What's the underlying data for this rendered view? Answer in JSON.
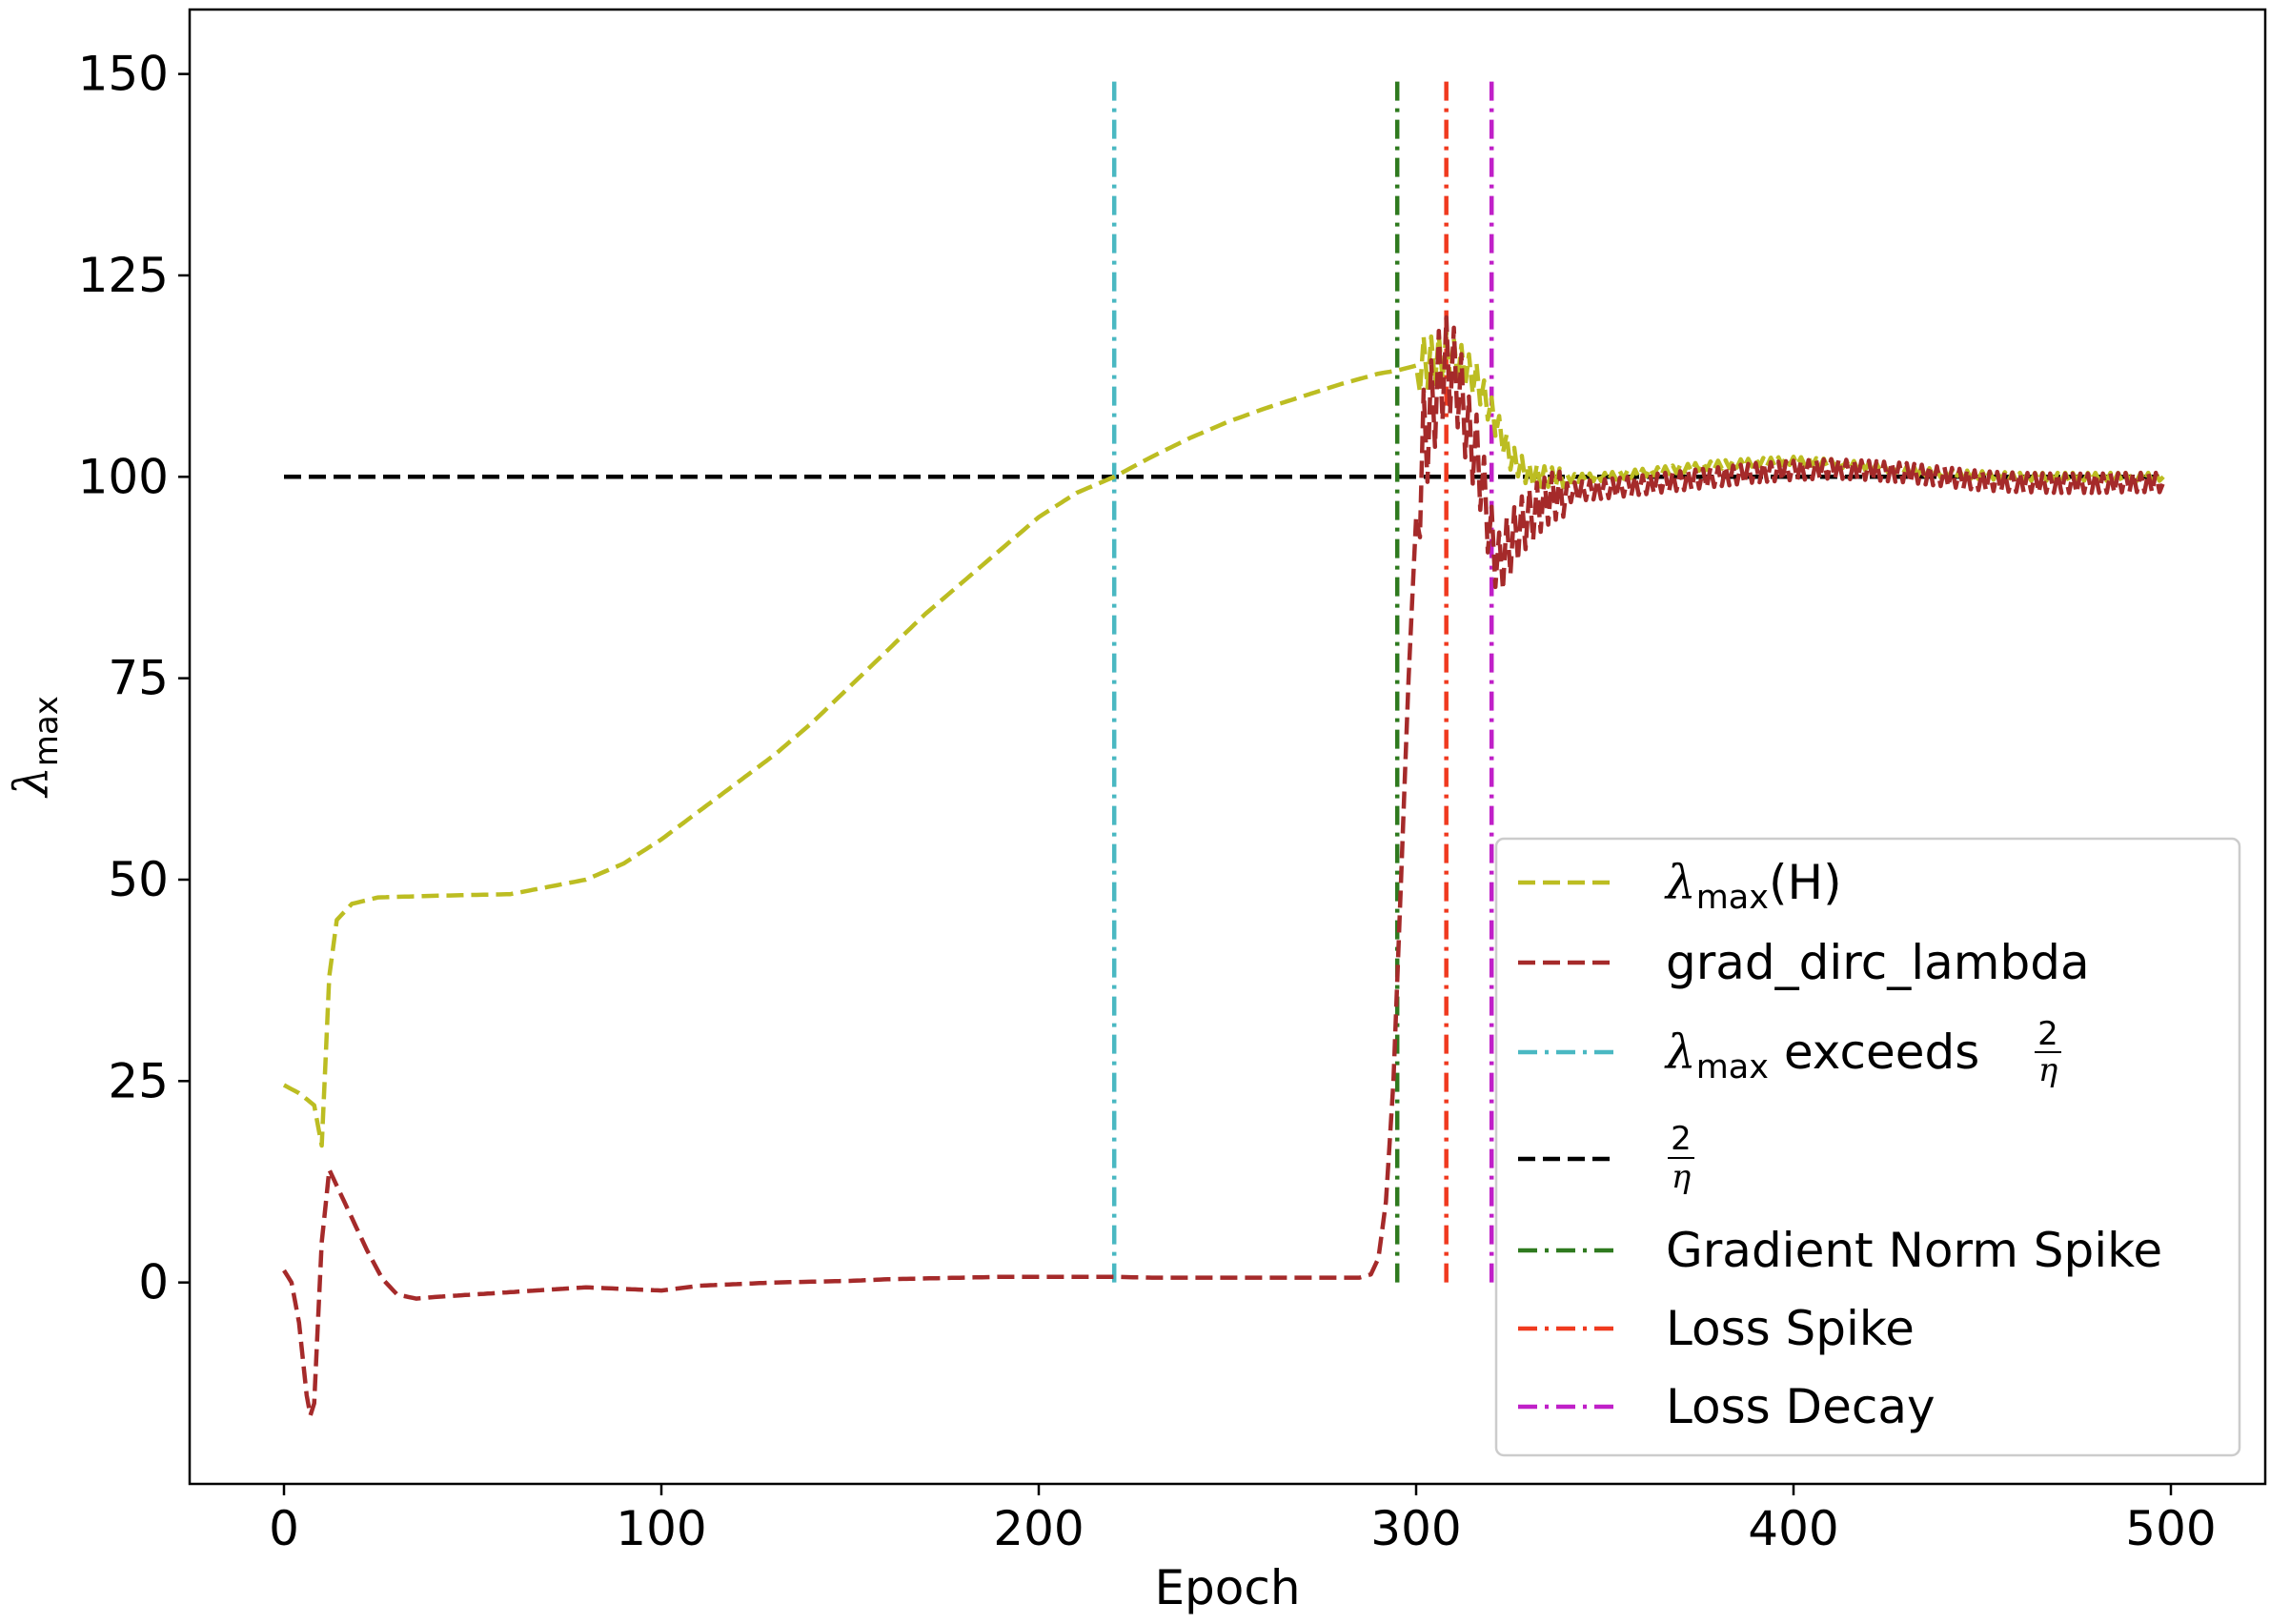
{
  "chart_data": {
    "type": "line",
    "xlabel": "Epoch",
    "ylabel_main": "λ",
    "ylabel_sub": "max",
    "xlim": [
      -25,
      525
    ],
    "ylim": [
      -25,
      158
    ],
    "xticks": [
      0,
      100,
      200,
      300,
      400,
      500
    ],
    "yticks": [
      0,
      25,
      50,
      75,
      100,
      125,
      150
    ],
    "grid": false,
    "legend_position": "lower-right",
    "colors": {
      "lambda_max_H": "#bcbd22",
      "grad_dirc_lambda": "#a52a2a",
      "exceeds": "#4ab8c2",
      "two_over_eta": "#000000",
      "grad_norm_spike": "#2f7a1f",
      "loss_spike": "#f03a1f",
      "loss_decay": "#c020c8"
    },
    "series": [
      {
        "name": "λmax(H)",
        "style": "dashed",
        "x": [
          0,
          4,
          8,
          10,
          12,
          14,
          18,
          25,
          40,
          60,
          80,
          90,
          100,
          110,
          120,
          130,
          140,
          150,
          160,
          170,
          180,
          190,
          200,
          210,
          220,
          230,
          240,
          250,
          260,
          270,
          280,
          290,
          295,
          300,
          305,
          308,
          312,
          316,
          320,
          325,
          330,
          340,
          350,
          360,
          370,
          380,
          390,
          400,
          410,
          420,
          430,
          440,
          450,
          460,
          470,
          480,
          490,
          498
        ],
        "y": [
          24.5,
          23.5,
          22.0,
          17.0,
          38.0,
          45.0,
          47.0,
          47.8,
          48.0,
          48.2,
          50.0,
          52.0,
          55.0,
          58.5,
          62.0,
          65.5,
          69.5,
          74.0,
          78.5,
          83.0,
          87.0,
          91.0,
          95.0,
          98.0,
          100.0,
          102.5,
          104.8,
          106.8,
          108.5,
          110.0,
          111.5,
          112.8,
          113.2,
          113.8,
          114.5,
          115.2,
          114.0,
          112.0,
          108.0,
          102.5,
          100.2,
          99.8,
          100.0,
          100.5,
          101.0,
          101.5,
          101.8,
          102.0,
          101.7,
          101.3,
          100.8,
          100.4,
          100.2,
          100.0,
          100.0,
          100.0,
          100.0,
          100.0
        ]
      },
      {
        "name": "grad_dirc_lambda",
        "style": "dashed",
        "x": [
          0,
          2,
          4,
          6,
          7,
          8,
          9,
          10,
          12,
          14,
          18,
          22,
          26,
          30,
          35,
          40,
          60,
          80,
          90,
          100,
          110,
          120,
          130,
          140,
          150,
          160,
          170,
          180,
          190,
          200,
          210,
          220,
          230,
          240,
          250,
          260,
          270,
          280,
          285,
          288,
          290,
          292,
          294,
          296,
          298,
          300,
          302,
          304,
          306,
          308,
          310,
          312,
          314,
          316,
          318,
          320,
          322,
          324,
          328,
          332,
          336,
          340,
          345,
          350,
          360,
          370,
          380,
          390,
          400,
          410,
          420,
          430,
          440,
          450,
          460,
          470,
          480,
          490,
          498
        ],
        "y": [
          1.5,
          0.0,
          -5.0,
          -14.0,
          -16.5,
          -15.0,
          -5.0,
          5.0,
          14.0,
          12.0,
          8.0,
          4.0,
          0.5,
          -1.5,
          -2.0,
          -1.8,
          -1.2,
          -0.6,
          -0.8,
          -1.0,
          -0.4,
          -0.2,
          0.0,
          0.1,
          0.2,
          0.4,
          0.5,
          0.6,
          0.7,
          0.7,
          0.7,
          0.7,
          0.6,
          0.6,
          0.6,
          0.6,
          0.6,
          0.6,
          0.6,
          1.0,
          3.0,
          10.0,
          25.0,
          50.0,
          75.0,
          95.0,
          104.0,
          108.0,
          112.0,
          114.0,
          113.0,
          110.0,
          105.0,
          103.0,
          98.0,
          92.0,
          89.0,
          91.0,
          94.0,
          96.0,
          97.5,
          98.0,
          98.3,
          98.5,
          99.0,
          99.5,
          100.0,
          100.5,
          100.8,
          101.0,
          100.8,
          100.5,
          100.0,
          99.5,
          99.3,
          99.2,
          99.2,
          99.3,
          99.3
        ]
      }
    ],
    "reference_lines": [
      {
        "name": "2/η",
        "orientation": "horizontal",
        "y": 100,
        "x_from": 0,
        "x_to": 498,
        "style": "dashed"
      },
      {
        "name": "λmax exceeds 2/η",
        "orientation": "vertical",
        "x": 220,
        "y_from": 0,
        "y_to": 150,
        "style": "dashdot"
      },
      {
        "name": "Gradient Norm Spike",
        "orientation": "vertical",
        "x": 295,
        "y_from": 0,
        "y_to": 150,
        "style": "dashdot"
      },
      {
        "name": "Loss Spike",
        "orientation": "vertical",
        "x": 308,
        "y_from": 0,
        "y_to": 150,
        "style": "dashdot"
      },
      {
        "name": "Loss Decay",
        "orientation": "vertical",
        "x": 320,
        "y_from": 0,
        "y_to": 150,
        "style": "dashdot"
      }
    ],
    "legend": {
      "lambda_max_H": {
        "main": "λ",
        "sub": "max",
        "tail": "(H)"
      },
      "grad_dirc_lambda": "grad_dirc_lambda",
      "exceeds": {
        "main": "λ",
        "sub": "max",
        "tail": " exceeds ",
        "num": "2",
        "den": "η"
      },
      "two_over_eta": {
        "num": "2",
        "den": "η"
      },
      "grad_norm_spike": "Gradient Norm Spike",
      "loss_spike": "Loss Spike",
      "loss_decay": "Loss Decay"
    }
  }
}
